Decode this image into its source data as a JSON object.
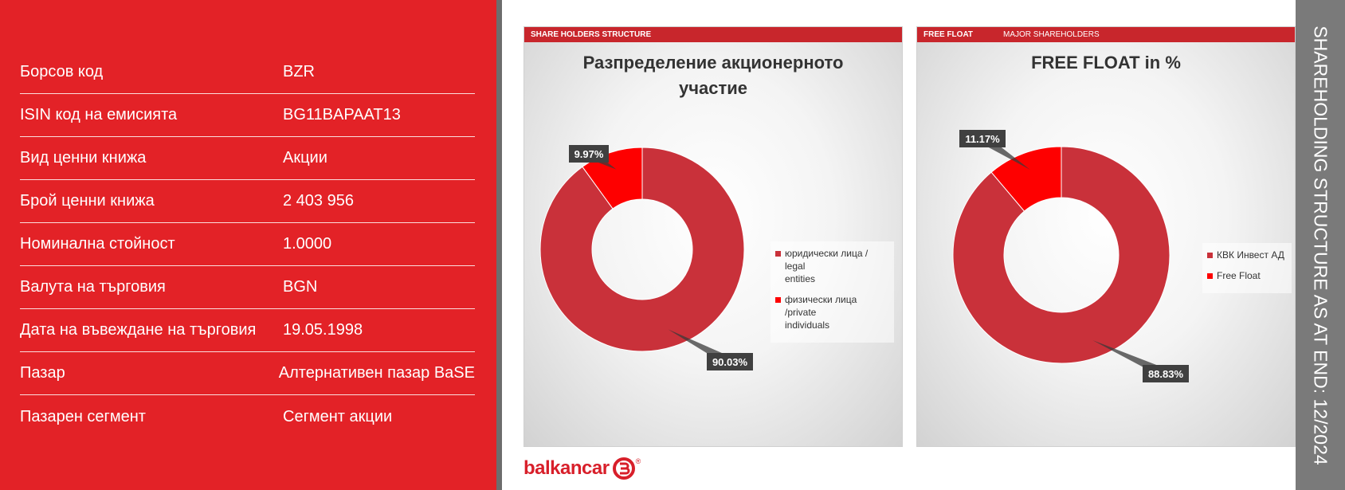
{
  "info_rows": [
    {
      "label": "Борсов код",
      "value": "BZR"
    },
    {
      "label": "ISIN код на емисията",
      "value": "BG11BAPAAT13"
    },
    {
      "label": "Вид ценни книжа",
      "value": "Акции"
    },
    {
      "label": "Брой ценни книжа",
      "value": "2 403 956"
    },
    {
      "label": "Номинална стойност",
      "value": "1.0000"
    },
    {
      "label": "Валута на търговия",
      "value": "BGN"
    },
    {
      "label": "Дата на въвеждане на търговия",
      "value": "19.05.1998"
    },
    {
      "label": "Пазар",
      "value": "Алтернативен пазар BaSE"
    },
    {
      "label": "Пазарен сегмент",
      "value": "Сегмент акции"
    }
  ],
  "panels": {
    "left_header": "SHARE HOLDERS STRUCTURE",
    "right_header": "FREE FLOAT",
    "right_subheader": "MAJOR SHAREHOLDERS"
  },
  "chart_data": [
    {
      "type": "pie",
      "variant": "donut",
      "title_line1": "Разпределение акционерното",
      "title_line2": "участие",
      "slices": [
        {
          "name": "юридически лица / legal entities",
          "value": 90.03,
          "label": "90.03%",
          "color": "#c9313a"
        },
        {
          "name": "физически лица /private individuals",
          "value": 9.97,
          "label": "9.97%",
          "color": "#fe0000"
        }
      ],
      "legend": [
        {
          "line1": "юридически лица / legal",
          "line2": "entities",
          "color": "#c9313a"
        },
        {
          "line1": "физически лица /private",
          "line2": "individuals",
          "color": "#fe0000"
        }
      ],
      "legend_position": "right"
    },
    {
      "type": "pie",
      "variant": "donut",
      "title": "FREE FLOAT in %",
      "slices": [
        {
          "name": "КВК Инвест АД",
          "value": 88.83,
          "label": "88.83%",
          "color": "#c9313a"
        },
        {
          "name": "Free Float",
          "value": 11.17,
          "label": "11.17%",
          "color": "#fe0000"
        }
      ],
      "legend": [
        {
          "line1": "КВК Инвест АД",
          "color": "#c9313a"
        },
        {
          "line1": "Free Float",
          "color": "#fe0000"
        }
      ],
      "legend_position": "right"
    }
  ],
  "logo": {
    "text": "balkancar",
    "reg": "®"
  },
  "side_title": "SHAREHOLDING STRUCTURE AS AT END: 12/2024"
}
